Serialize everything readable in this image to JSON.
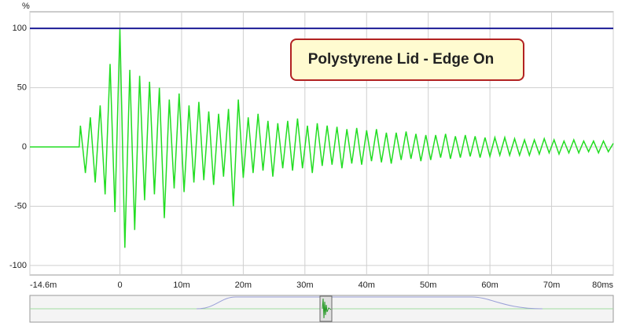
{
  "chart_data": {
    "type": "line",
    "y_unit": "%",
    "annotation": "Polystyrene Lid - Edge On",
    "x": [
      -14.6,
      -6.6,
      -6.4,
      -5.6,
      -4.8,
      -4.0,
      -3.2,
      -2.4,
      -1.6,
      -0.8,
      0,
      0.8,
      1.6,
      2.4,
      3.2,
      4.0,
      4.8,
      5.6,
      6.4,
      7.2,
      8.0,
      8.8,
      9.6,
      10.4,
      11.2,
      12.0,
      12.8,
      13.6,
      14.4,
      15.2,
      16.0,
      16.8,
      17.6,
      18.4,
      19.2,
      20.0,
      20.8,
      21.6,
      22.4,
      23.2,
      24.0,
      24.8,
      25.6,
      26.4,
      27.2,
      28.0,
      28.8,
      29.6,
      30.4,
      31.2,
      32.0,
      32.8,
      33.6,
      34.4,
      35.2,
      36.0,
      36.8,
      37.6,
      38.4,
      39.2,
      40.0,
      40.8,
      41.6,
      42.4,
      43.2,
      44.0,
      44.8,
      45.6,
      46.4,
      47.2,
      48.0,
      48.8,
      49.6,
      50.4,
      51.2,
      52.0,
      52.8,
      53.6,
      54.4,
      55.2,
      56.0,
      56.8,
      57.6,
      58.4,
      59.2,
      60.0,
      60.8,
      61.6,
      62.4,
      63.2,
      64.0,
      64.8,
      65.6,
      66.4,
      67.2,
      68.0,
      68.8,
      69.6,
      70.4,
      71.2,
      72.0,
      72.8,
      73.6,
      74.4,
      75.2,
      76.0,
      76.8,
      77.6,
      78.4,
      79.2,
      80.0
    ],
    "values": [
      0,
      0,
      18,
      -22,
      25,
      -30,
      35,
      -40,
      70,
      -55,
      100,
      -85,
      65,
      -70,
      60,
      -45,
      55,
      -40,
      50,
      -60,
      40,
      -35,
      45,
      -38,
      35,
      -30,
      38,
      -28,
      30,
      -32,
      28,
      -25,
      32,
      -50,
      40,
      -26,
      25,
      -22,
      28,
      -20,
      22,
      -25,
      20,
      -18,
      22,
      -20,
      24,
      -18,
      18,
      -22,
      20,
      -16,
      18,
      -15,
      17,
      -18,
      15,
      -14,
      16,
      -15,
      14,
      -12,
      15,
      -13,
      12,
      -14,
      12,
      -11,
      13,
      -10,
      11,
      -12,
      10,
      -11,
      10,
      -9,
      11,
      -10,
      9,
      -9,
      10,
      -8,
      9,
      -9,
      8,
      -8,
      8,
      -7,
      8,
      -7,
      7,
      -7,
      6,
      -7,
      6,
      -6,
      7,
      -5,
      6,
      -6,
      5,
      -5,
      6,
      -5,
      5,
      -4,
      5,
      -5,
      5,
      -4,
      3
    ],
    "color": "#22dd22",
    "reference_line": {
      "value": 100,
      "color": "#1c1c96"
    },
    "xlim": [
      -14.6,
      80
    ],
    "ylim": [
      -108,
      114
    ],
    "xticks": [
      {
        "value": -14.6,
        "label": "-14.6m"
      },
      0,
      {
        "value": 10,
        "label": "10m"
      },
      {
        "value": 20,
        "label": "20m"
      },
      {
        "value": 30,
        "label": "30m"
      },
      {
        "value": 40,
        "label": "40m"
      },
      {
        "value": 50,
        "label": "50m"
      },
      {
        "value": 60,
        "label": "60m"
      },
      {
        "value": 70,
        "label": "70m"
      },
      {
        "value": 80,
        "label": "80ms"
      }
    ],
    "yticks": [
      100,
      50,
      0,
      -50,
      -100
    ],
    "grid": true
  }
}
